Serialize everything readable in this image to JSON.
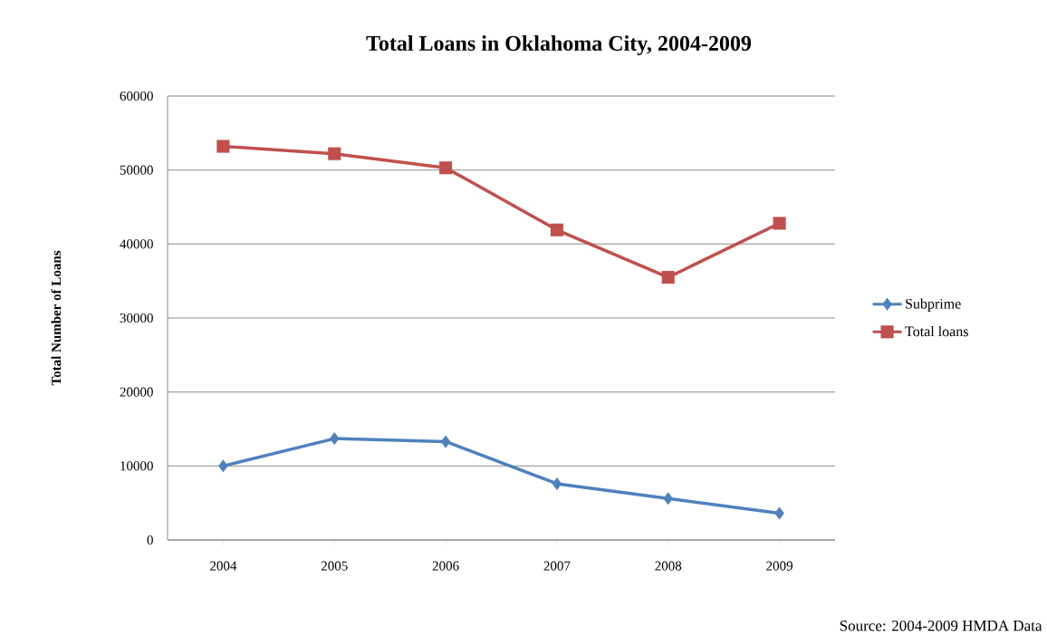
{
  "chart_data": {
    "type": "line",
    "title": "Total Loans in Oklahoma City, 2004-2009",
    "ylabel": "Total Number of Loans",
    "categories": [
      "2004",
      "2005",
      "2006",
      "2007",
      "2008",
      "2009"
    ],
    "series": [
      {
        "name": "Subprime",
        "color": "#4f81bd",
        "marker": "diamond",
        "values": [
          10000,
          13700,
          13300,
          7600,
          5600,
          3600
        ]
      },
      {
        "name": "Total loans",
        "color": "#c0504d",
        "marker": "square",
        "values": [
          53200,
          52200,
          50300,
          41900,
          35500,
          42800
        ]
      }
    ],
    "ylim": [
      0,
      60000
    ],
    "yticks": [
      0,
      10000,
      20000,
      30000,
      40000,
      50000,
      60000
    ],
    "grid": "y",
    "legend": "right",
    "annotations": [
      "Source:  2004-2009 HMDA Data"
    ]
  }
}
